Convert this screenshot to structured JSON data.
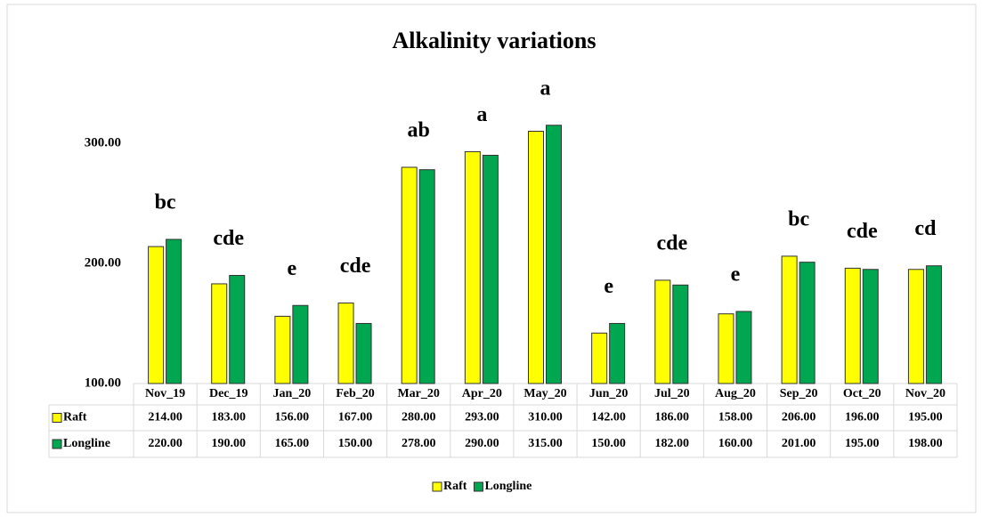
{
  "chart_data": {
    "type": "bar",
    "title": "Alkalinity variations",
    "categories": [
      "Nov_19",
      "Dec_19",
      "Jan_20",
      "Feb_20",
      "Mar_20",
      "Apr_20",
      "May_20",
      "Jun_20",
      "Jul_20",
      "Aug_20",
      "Sep_20",
      "Oct_20",
      "Nov_20"
    ],
    "series": [
      {
        "name": "Raft",
        "color": "#ffff00",
        "values": [
          214,
          183,
          156,
          167,
          280,
          293,
          310,
          142,
          186,
          158,
          206,
          196,
          195
        ],
        "value_labels": [
          "214.00",
          "183.00",
          "156.00",
          "167.00",
          "280.00",
          "293.00",
          "310.00",
          "142.00",
          "186.00",
          "158.00",
          "206.00",
          "196.00",
          "195.00"
        ]
      },
      {
        "name": "Longline",
        "color": "#00a650",
        "values": [
          220,
          190,
          165,
          150,
          278,
          290,
          315,
          150,
          182,
          160,
          201,
          195,
          198
        ],
        "value_labels": [
          "220.00",
          "190.00",
          "165.00",
          "150.00",
          "278.00",
          "290.00",
          "315.00",
          "150.00",
          "182.00",
          "160.00",
          "201.00",
          "195.00",
          "198.00"
        ]
      }
    ],
    "annotations": [
      "bc",
      "cde",
      "e",
      "cde",
      "ab",
      "a",
      "a",
      "e",
      "cde",
      "e",
      "bc",
      "cde",
      "cd"
    ],
    "ylim": [
      100,
      350
    ],
    "yticks": [
      {
        "value": 100,
        "label": "100.00"
      },
      {
        "value": 200,
        "label": "200.00"
      },
      {
        "value": 300,
        "label": "300.00"
      }
    ],
    "legend": "bottom"
  }
}
